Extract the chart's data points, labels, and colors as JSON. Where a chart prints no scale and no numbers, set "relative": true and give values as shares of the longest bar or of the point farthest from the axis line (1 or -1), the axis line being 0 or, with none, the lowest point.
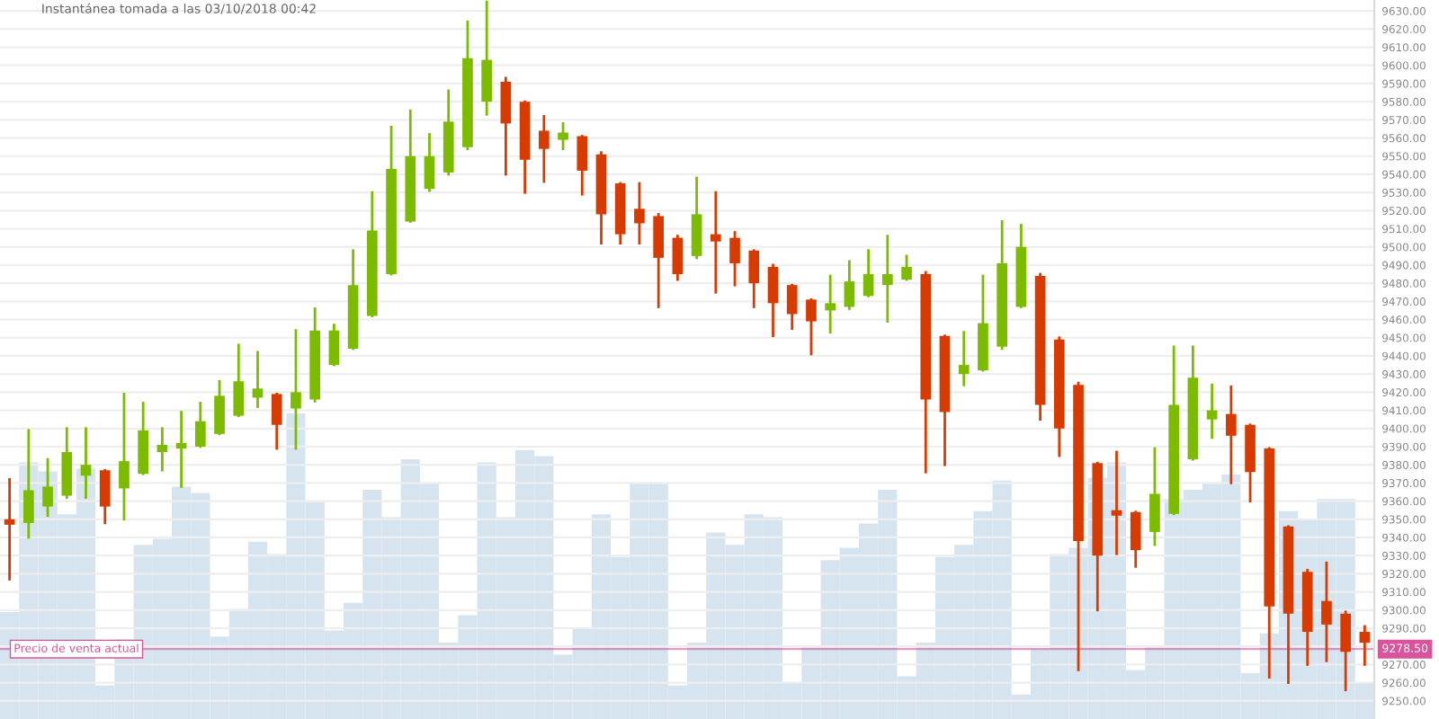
{
  "chart_data": [
    {
      "type": "candlestick",
      "title": "Instantánea tomada a las 03/10/2018 00:42",
      "categories": [
        null,
        null,
        null,
        null,
        null,
        null,
        null,
        null,
        null,
        null,
        null,
        null,
        null,
        null,
        null,
        null,
        null,
        null,
        null,
        null,
        null,
        null,
        null,
        null,
        null,
        null,
        null,
        null,
        null,
        null,
        null,
        null,
        null,
        null,
        null,
        null,
        null,
        null,
        null,
        null,
        null,
        null,
        null,
        null,
        null,
        null,
        null,
        null,
        null,
        null,
        null,
        null,
        null,
        null,
        null,
        null,
        null,
        null,
        null,
        null,
        null,
        null,
        null,
        null,
        null,
        null,
        null,
        null,
        null,
        null,
        null,
        null
      ],
      "ohlc": [
        [
          9350,
          9372,
          9317,
          9347
        ],
        [
          9348,
          9399,
          9340,
          9366
        ],
        [
          9357,
          9383,
          9352,
          9368
        ],
        [
          9363,
          9400,
          9362,
          9387
        ],
        [
          9374,
          9400,
          9362,
          9380
        ],
        [
          9377,
          9377,
          9348,
          9357
        ],
        [
          9367,
          9419,
          9350,
          9382
        ],
        [
          9375,
          9414,
          9375,
          9399
        ],
        [
          9387,
          9400,
          9377,
          9391
        ],
        [
          9389,
          9409,
          9368,
          9392
        ],
        [
          9390,
          9414,
          9390,
          9404
        ],
        [
          9397,
          9426,
          9397,
          9418
        ],
        [
          9407,
          9446,
          9407,
          9426
        ],
        [
          9417,
          9442,
          9412,
          9422
        ],
        [
          9419,
          9419,
          9389,
          9402
        ],
        [
          9411,
          9454,
          9389,
          9420
        ],
        [
          9416,
          9466,
          9415,
          9454
        ],
        [
          9435,
          9457,
          9435,
          9454
        ],
        [
          9444,
          9498,
          9444,
          9479
        ],
        [
          9462,
          9530,
          9462,
          9509
        ],
        [
          9485,
          9566,
          9485,
          9543
        ],
        [
          9514,
          9575,
          9514,
          9550
        ],
        [
          9532,
          9562,
          9531,
          9550
        ],
        [
          9541,
          9586,
          9540,
          9569
        ],
        [
          9555,
          9624,
          9554,
          9604
        ],
        [
          9580,
          9635,
          9573,
          9603
        ],
        [
          9591,
          9593,
          9540,
          9568
        ],
        [
          9580,
          9580,
          9530,
          9548
        ],
        [
          9564,
          9572,
          9536,
          9554
        ],
        [
          9559,
          9568,
          9554,
          9563
        ],
        [
          9561,
          9561,
          9529,
          9542
        ],
        [
          9551,
          9552,
          9502,
          9518
        ],
        [
          9535,
          9535,
          9502,
          9507
        ],
        [
          9521,
          9535,
          9502,
          9513
        ],
        [
          9517,
          9518,
          9467,
          9494
        ],
        [
          9505,
          9506,
          9482,
          9485
        ],
        [
          9495,
          9538,
          9494,
          9518
        ],
        [
          9507,
          9530,
          9475,
          9503
        ],
        [
          9505,
          9508,
          9479,
          9491
        ],
        [
          9498,
          9498,
          9467,
          9480
        ],
        [
          9489,
          9490,
          9451,
          9469
        ],
        [
          9479,
          9479,
          9455,
          9463
        ],
        [
          9471,
          9471,
          9441,
          9459
        ],
        [
          9465,
          9484,
          9453,
          9469
        ],
        [
          9467,
          9492,
          9466,
          9481
        ],
        [
          9473,
          9498,
          9473,
          9485
        ],
        [
          9479,
          9506,
          9459,
          9485
        ],
        [
          9482,
          9495,
          9482,
          9489
        ],
        [
          9485,
          9486,
          9376,
          9416
        ],
        [
          9451,
          9451,
          9380,
          9409
        ],
        [
          9430,
          9453,
          9424,
          9435
        ],
        [
          9432,
          9484,
          9432,
          9458
        ],
        [
          9445,
          9514,
          9444,
          9491
        ],
        [
          9467,
          9512,
          9467,
          9500
        ],
        [
          9484,
          9485,
          9405,
          9413
        ],
        [
          9449,
          9450,
          9385,
          9400
        ],
        [
          9424,
          9425,
          9267,
          9338
        ],
        [
          9381,
          9381,
          9300,
          9330
        ],
        [
          9355,
          9387,
          9331,
          9352
        ],
        [
          9354,
          9354,
          9324,
          9333
        ],
        [
          9343,
          9389,
          9336,
          9364
        ],
        [
          9353,
          9445,
          9353,
          9413
        ],
        [
          9383,
          9445,
          9383,
          9428
        ],
        [
          9405,
          9424,
          9395,
          9410
        ],
        [
          9408,
          9423,
          9370,
          9396
        ],
        [
          9402,
          9402,
          9360,
          9376
        ],
        [
          9389,
          9389,
          9263,
          9302
        ],
        [
          9346,
          9346,
          9260,
          9298
        ],
        [
          9321,
          9322,
          9270,
          9288
        ],
        [
          9305,
          9326,
          9272,
          9292
        ],
        [
          9298,
          9299,
          9256,
          9277
        ],
        [
          9288,
          9291,
          9270,
          9282
        ]
      ],
      "colors": [
        "#d83b01",
        "#7cbb00",
        "#7cbb00",
        "#7cbb00",
        "#7cbb00",
        "#d83b01",
        "#7cbb00",
        "#7cbb00",
        "#7cbb00",
        "#7cbb00",
        "#7cbb00",
        "#7cbb00",
        "#7cbb00",
        "#7cbb00",
        "#d83b01",
        "#7cbb00",
        "#7cbb00",
        "#7cbb00",
        "#7cbb00",
        "#7cbb00",
        "#7cbb00",
        "#7cbb00",
        "#7cbb00",
        "#7cbb00",
        "#7cbb00",
        "#7cbb00",
        "#d83b01",
        "#d83b01",
        "#d83b01",
        "#7cbb00",
        "#d83b01",
        "#d83b01",
        "#d83b01",
        "#d83b01",
        "#d83b01",
        "#d83b01",
        "#7cbb00",
        "#d83b01",
        "#d83b01",
        "#d83b01",
        "#d83b01",
        "#d83b01",
        "#d83b01",
        "#7cbb00",
        "#7cbb00",
        "#7cbb00",
        "#7cbb00",
        "#7cbb00",
        "#d83b01",
        "#d83b01",
        "#7cbb00",
        "#7cbb00",
        "#7cbb00",
        "#7cbb00",
        "#d83b01",
        "#d83b01",
        "#d83b01",
        "#d83b01",
        "#d83b01",
        "#d83b01",
        "#7cbb00",
        "#7cbb00",
        "#7cbb00",
        "#7cbb00",
        "#d83b01",
        "#d83b01",
        "#d83b01",
        "#d83b01",
        "#d83b01",
        "#d83b01",
        "#d83b01",
        "#d83b01"
      ],
      "ylim": [
        9240,
        9636
      ],
      "yticks": [
        {
          "value": 9250,
          "label": "9250.00"
        },
        {
          "value": 9260,
          "label": "9260.00"
        },
        {
          "value": 9270,
          "label": "9270.00"
        },
        {
          "value": 9280,
          "label": null
        },
        {
          "value": 9290,
          "label": "9290.00"
        },
        {
          "value": 9300,
          "label": "9300.00"
        },
        {
          "value": 9310,
          "label": "9310.00"
        },
        {
          "value": 9320,
          "label": "9320.00"
        },
        {
          "value": 9330,
          "label": "9330.00"
        },
        {
          "value": 9340,
          "label": "9340.00"
        },
        {
          "value": 9350,
          "label": "9350.00"
        },
        {
          "value": 9360,
          "label": "9360.00"
        },
        {
          "value": 9370,
          "label": "9370.00"
        },
        {
          "value": 9380,
          "label": "9380.00"
        },
        {
          "value": 9390,
          "label": "9390.00"
        },
        {
          "value": 9400,
          "label": "9400.00"
        },
        {
          "value": 9410,
          "label": "9410.00"
        },
        {
          "value": 9420,
          "label": "9420.00"
        },
        {
          "value": 9430,
          "label": "9430.00"
        },
        {
          "value": 9440,
          "label": "9440.00"
        },
        {
          "value": 9450,
          "label": "9450.00"
        },
        {
          "value": 9460,
          "label": "9460.00"
        },
        {
          "value": 9470,
          "label": "9470.00"
        },
        {
          "value": 9480,
          "label": "9480.00"
        },
        {
          "value": 9490,
          "label": "9490.00"
        },
        {
          "value": 9500,
          "label": "9500.00"
        },
        {
          "value": 9510,
          "label": "9510.00"
        },
        {
          "value": 9520,
          "label": "9520.00"
        },
        {
          "value": 9530,
          "label": "9530.00"
        },
        {
          "value": 9540,
          "label": "9540.00"
        },
        {
          "value": 9550,
          "label": "9550.00"
        },
        {
          "value": 9560,
          "label": "9560.00"
        },
        {
          "value": 9570,
          "label": "9570.00"
        },
        {
          "value": 9580,
          "label": "9580.00"
        },
        {
          "value": 9590,
          "label": "9590.00"
        },
        {
          "value": 9600,
          "label": "9600.00"
        },
        {
          "value": 9610,
          "label": "9610.00"
        },
        {
          "value": 9620,
          "label": "9620.00"
        },
        {
          "value": 9630,
          "label": "9630.00"
        }
      ],
      "grid": "y",
      "ref_lines": [
        {
          "axis": "y",
          "value": 9278.5,
          "label": "Precio de venta actual",
          "color": "#d9559b"
        }
      ],
      "annotations": [
        {
          "text": "9278.50",
          "y": 9278.5
        }
      ]
    },
    {
      "type": "bar",
      "relative": true,
      "color": "#d6e4f0",
      "categories": [
        null,
        null,
        null,
        null,
        null,
        null,
        null,
        null,
        null,
        null,
        null,
        null,
        null,
        null,
        null,
        null,
        null,
        null,
        null,
        null,
        null,
        null,
        null,
        null,
        null,
        null,
        null,
        null,
        null,
        null,
        null,
        null,
        null,
        null,
        null,
        null,
        null,
        null,
        null,
        null,
        null,
        null,
        null,
        null,
        null,
        null,
        null,
        null,
        null,
        null,
        null,
        null,
        null,
        null,
        null,
        null,
        null,
        null,
        null,
        null,
        null,
        null,
        null,
        null,
        null,
        null,
        null,
        null,
        null,
        null,
        null,
        null
      ],
      "values": [
        0.35,
        0.84,
        0.81,
        0.67,
        0.82,
        0.11,
        0.26,
        0.57,
        0.59,
        0.76,
        0.74,
        0.27,
        0.36,
        0.58,
        0.54,
        1,
        0.71,
        0.29,
        0.38,
        0.75,
        0.66,
        0.85,
        0.77,
        0.25,
        0.34,
        0.84,
        0.66,
        0.88,
        0.86,
        0.21,
        0.3,
        0.67,
        0.53,
        0.77,
        0.77,
        0.11,
        0.25,
        0.61,
        0.57,
        0.67,
        0.66,
        0.12,
        0.24,
        0.52,
        0.56,
        0.64,
        0.75,
        0.14,
        0.25,
        0.53,
        0.57,
        0.68,
        0.78,
        0.08,
        0.23,
        0.54,
        0.56,
        0.79,
        0.84,
        0.16,
        0.24,
        0.72,
        0.75,
        0.77,
        0.8,
        0.15,
        0.28,
        0.68,
        0.65,
        0.72,
        0.72,
        0.12
      ]
    }
  ]
}
